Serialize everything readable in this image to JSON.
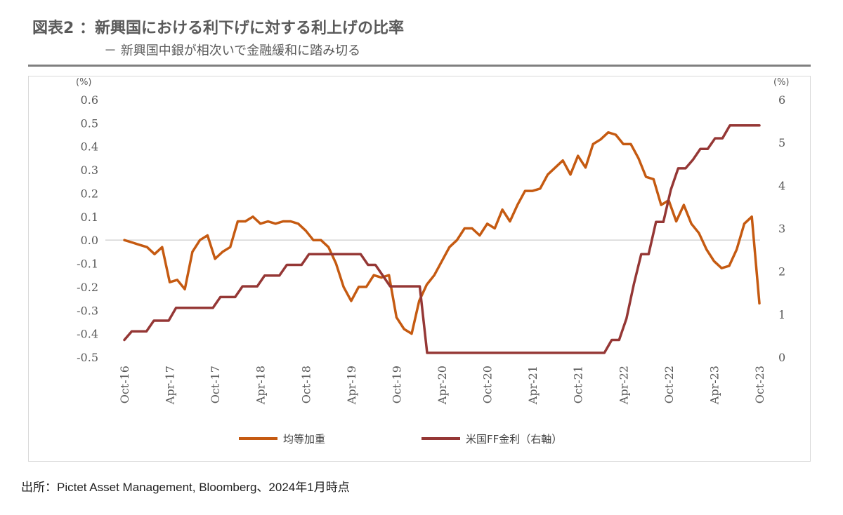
{
  "header": {
    "title": "図表2 ：新興国における利下げに対する利上げの比率",
    "subtitle": "－ 新興国中銀が相次いで金融緩和に踏み切る"
  },
  "footer": {
    "source": "出所：Pictet Asset Management, Bloomberg、2024年1月時点"
  },
  "chart_data": {
    "type": "line",
    "title": "",
    "left_unit": "(%)",
    "right_unit": "(%)",
    "x_tick_labels": [
      "Oct-16",
      "Apr-17",
      "Oct-17",
      "Apr-18",
      "Oct-18",
      "Apr-19",
      "Oct-19",
      "Apr-20",
      "Oct-20",
      "Apr-21",
      "Oct-21",
      "Apr-22",
      "Oct-22",
      "Apr-23",
      "Oct-23"
    ],
    "y_left": {
      "min": -0.5,
      "max": 0.6,
      "ticks": [
        "0.6",
        "0.5",
        "0.4",
        "0.3",
        "0.2",
        "0.1",
        "0.0",
        "-0.1",
        "-0.2",
        "-0.3",
        "-0.4",
        "-0.5"
      ]
    },
    "y_right": {
      "min": 0,
      "max": 6,
      "ticks": [
        "6",
        "5",
        "4",
        "3",
        "2",
        "1",
        "0"
      ]
    },
    "legend_position": "bottom",
    "grid": false,
    "colors": {
      "equal_weight": "#c55a11",
      "us_ff": "#953735"
    },
    "series": [
      {
        "name": "均等加重",
        "axis": "left",
        "color": "#c55a11",
        "values": [
          0.0,
          -0.01,
          -0.02,
          -0.03,
          -0.06,
          -0.03,
          -0.18,
          -0.17,
          -0.21,
          -0.05,
          0.0,
          0.02,
          -0.08,
          -0.05,
          -0.03,
          0.08,
          0.08,
          0.1,
          0.07,
          0.08,
          0.07,
          0.08,
          0.08,
          0.07,
          0.04,
          0.0,
          0.0,
          -0.03,
          -0.1,
          -0.2,
          -0.26,
          -0.2,
          -0.2,
          -0.15,
          -0.16,
          -0.15,
          -0.33,
          -0.38,
          -0.4,
          -0.26,
          -0.19,
          -0.15,
          -0.09,
          -0.03,
          0.0,
          0.05,
          0.05,
          0.02,
          0.07,
          0.05,
          0.13,
          0.08,
          0.15,
          0.21,
          0.21,
          0.22,
          0.28,
          0.31,
          0.34,
          0.28,
          0.36,
          0.31,
          0.41,
          0.43,
          0.46,
          0.45,
          0.41,
          0.41,
          0.35,
          0.27,
          0.26,
          0.15,
          0.17,
          0.08,
          0.15,
          0.07,
          0.03,
          -0.04,
          -0.09,
          -0.12,
          -0.11,
          -0.04,
          0.07,
          0.1,
          -0.27
        ]
      },
      {
        "name": "米国FF金利（右軸）",
        "axis": "right",
        "color": "#953735",
        "values": [
          0.4,
          0.6,
          0.6,
          0.6,
          0.85,
          0.85,
          0.85,
          1.15,
          1.15,
          1.15,
          1.15,
          1.15,
          1.15,
          1.4,
          1.4,
          1.4,
          1.65,
          1.65,
          1.65,
          1.9,
          1.9,
          1.9,
          2.15,
          2.15,
          2.15,
          2.4,
          2.4,
          2.4,
          2.4,
          2.4,
          2.4,
          2.4,
          2.4,
          2.15,
          2.15,
          1.9,
          1.65,
          1.65,
          1.65,
          1.65,
          1.65,
          0.1,
          0.1,
          0.1,
          0.1,
          0.1,
          0.1,
          0.1,
          0.1,
          0.1,
          0.1,
          0.1,
          0.1,
          0.1,
          0.1,
          0.1,
          0.1,
          0.1,
          0.1,
          0.1,
          0.1,
          0.1,
          0.1,
          0.1,
          0.1,
          0.1,
          0.4,
          0.4,
          0.9,
          1.7,
          2.4,
          2.4,
          3.15,
          3.15,
          3.9,
          4.4,
          4.4,
          4.6,
          4.85,
          4.85,
          5.1,
          5.1,
          5.4,
          5.4,
          5.4,
          5.4,
          5.4
        ]
      }
    ]
  }
}
